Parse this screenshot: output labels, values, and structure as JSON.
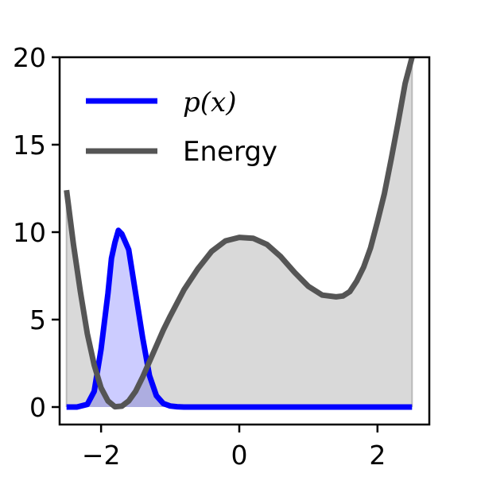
{
  "chart_data": {
    "type": "line",
    "title": "",
    "xlabel": "",
    "ylabel": "",
    "xlim": [
      -2.6,
      2.75
    ],
    "ylim": [
      -1.0,
      20.0
    ],
    "x_ticks": [
      {
        "value": -2,
        "label": "−2"
      },
      {
        "value": 0,
        "label": "0"
      },
      {
        "value": 2,
        "label": "2"
      }
    ],
    "y_ticks": [
      {
        "value": 0,
        "label": "0"
      },
      {
        "value": 5,
        "label": "5"
      },
      {
        "value": 10,
        "label": "10"
      },
      {
        "value": 15,
        "label": "15"
      },
      {
        "value": 20,
        "label": "20"
      }
    ],
    "grid": false,
    "legend_position": "top-left",
    "series": [
      {
        "name": "p(x)",
        "color": "#0000ff",
        "fill_color": "#0000ff",
        "fill_opacity": 0.2,
        "x": [
          -2.5,
          -2.35,
          -2.2,
          -2.1,
          -2.0,
          -1.9,
          -1.85,
          -1.8,
          -1.75,
          -1.7,
          -1.6,
          -1.5,
          -1.4,
          -1.3,
          -1.2,
          -1.1,
          -1.0,
          -0.9,
          -0.8,
          -0.6,
          -0.4,
          0.0,
          0.5,
          1.0,
          1.5,
          2.0,
          2.5
        ],
        "values": [
          0.0,
          0.0,
          0.15,
          0.9,
          3.3,
          6.5,
          8.5,
          9.4,
          10.1,
          9.9,
          9.0,
          6.5,
          4.0,
          1.8,
          0.65,
          0.2,
          0.06,
          0.02,
          0.0,
          0.0,
          0.0,
          0.0,
          0.0,
          0.0,
          0.0,
          0.0,
          0.0
        ]
      },
      {
        "name": "Energy",
        "label_plain": "Energy",
        "color": "#555555",
        "fill_color": "#b4b4b4",
        "fill_opacity": 0.5,
        "x": [
          -2.5,
          -2.4,
          -2.3,
          -2.2,
          -2.1,
          -2.0,
          -1.9,
          -1.8,
          -1.7,
          -1.6,
          -1.5,
          -1.4,
          -1.3,
          -1.2,
          -1.1,
          -1.0,
          -0.8,
          -0.6,
          -0.4,
          -0.2,
          0.0,
          0.2,
          0.4,
          0.6,
          0.8,
          1.0,
          1.2,
          1.4,
          1.5,
          1.6,
          1.7,
          1.8,
          1.9,
          2.0,
          2.1,
          2.2,
          2.3,
          2.4,
          2.5
        ],
        "values": [
          12.4,
          9.3,
          6.6,
          4.2,
          2.4,
          1.1,
          0.35,
          0.02,
          0.05,
          0.35,
          0.9,
          1.7,
          2.6,
          3.5,
          4.4,
          5.2,
          6.7,
          7.9,
          8.9,
          9.5,
          9.7,
          9.65,
          9.3,
          8.6,
          7.7,
          6.9,
          6.4,
          6.3,
          6.35,
          6.6,
          7.2,
          8.0,
          9.1,
          10.6,
          12.2,
          14.2,
          16.3,
          18.5,
          20.0
        ]
      }
    ]
  }
}
